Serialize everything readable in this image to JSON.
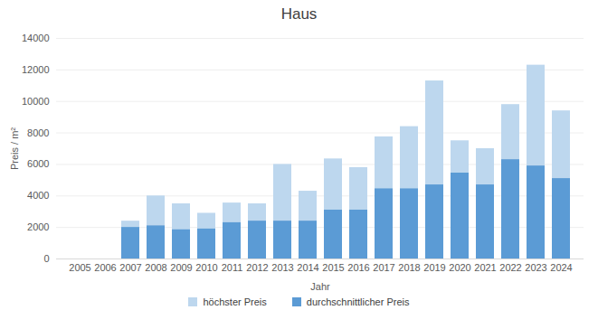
{
  "chart_data": {
    "type": "bar",
    "title": "Haus",
    "x_label": "Jahr",
    "y_label": "Preis / m²",
    "categories": [
      "2005",
      "2006",
      "2007",
      "2008",
      "2009",
      "2010",
      "2011",
      "2012",
      "2013",
      "2014",
      "2015",
      "2016",
      "2017",
      "2018",
      "2019",
      "2020",
      "2021",
      "2022",
      "2023",
      "2024"
    ],
    "series": [
      {
        "name": "höchster Preis",
        "color": "#bdd7ee",
        "values": [
          null,
          null,
          2400,
          4000,
          3500,
          2900,
          3550,
          3500,
          6000,
          4300,
          6350,
          5800,
          7750,
          8400,
          11300,
          7500,
          7000,
          9800,
          12300,
          9400
        ]
      },
      {
        "name": "durchschnittlicher Preis",
        "color": "#5b9bd5",
        "values": [
          null,
          null,
          2000,
          2100,
          1850,
          1900,
          2300,
          2400,
          2400,
          2400,
          3100,
          3100,
          4450,
          4450,
          4700,
          5450,
          4700,
          6300,
          5900,
          5100
        ]
      }
    ],
    "ylim": [
      0,
      14000
    ],
    "yticks": [
      0,
      2000,
      4000,
      6000,
      8000,
      10000,
      12000,
      14000
    ],
    "grid": true,
    "stacked": false,
    "legend": "bottom"
  }
}
